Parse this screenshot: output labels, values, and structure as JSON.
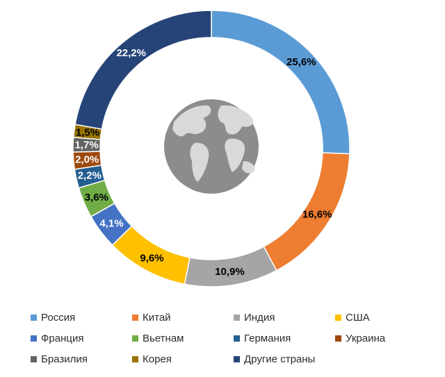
{
  "chart_data": {
    "type": "donut",
    "title": "",
    "center_icon": "globe-icon",
    "series": [
      {
        "name": "Россия",
        "value": 25.6,
        "label": "25,6%",
        "color": "#5b9bd5",
        "label_color": "#000000"
      },
      {
        "name": "Китай",
        "value": 16.6,
        "label": "16,6%",
        "color": "#ed7d31",
        "label_color": "#000000"
      },
      {
        "name": "Индия",
        "value": 10.9,
        "label": "10,9%",
        "color": "#a5a5a5",
        "label_color": "#000000"
      },
      {
        "name": "США",
        "value": 9.6,
        "label": "9,6%",
        "color": "#ffc000",
        "label_color": "#000000"
      },
      {
        "name": "Франция",
        "value": 4.1,
        "label": "4,1%",
        "color": "#4472c4",
        "label_color": "#ffffff"
      },
      {
        "name": "Вьетнам",
        "value": 3.6,
        "label": "3,6%",
        "color": "#70ad47",
        "label_color": "#000000"
      },
      {
        "name": "Германия",
        "value": 2.2,
        "label": "2,2%",
        "color": "#255e91",
        "label_color": "#ffffff"
      },
      {
        "name": "Украина",
        "value": 2.0,
        "label": "2,0%",
        "color": "#9e480e",
        "label_color": "#ffffff"
      },
      {
        "name": "Бразилия",
        "value": 1.7,
        "label": "1,7%",
        "color": "#636363",
        "label_color": "#ffffff"
      },
      {
        "name": "Корея",
        "value": 1.5,
        "label": "1,5%",
        "color": "#997300",
        "label_color": "#000000"
      },
      {
        "name": "Другие страны",
        "value": 22.2,
        "label": "22,2%",
        "color": "#264478",
        "label_color": "#ffffff"
      }
    ],
    "legend_position": "bottom"
  }
}
